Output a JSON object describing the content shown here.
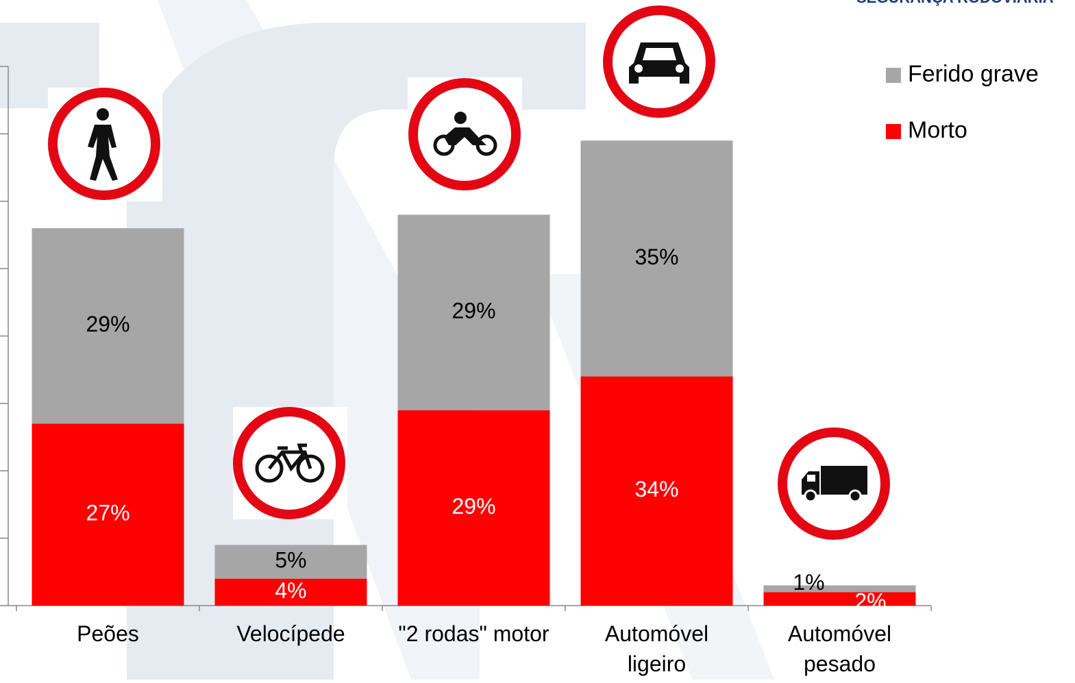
{
  "header": "SEGURANÇA RODOVIÁRIA",
  "chart_data": {
    "type": "stacked_bar",
    "categories": [
      "Peões",
      "Velocípede",
      "\"2 rodas\" motor",
      "Automóvel\nligeiro",
      "Automóvel\npesado"
    ],
    "series": [
      {
        "name": "Morto",
        "color": "#ff0000",
        "values": [
          27,
          4,
          29,
          34,
          2
        ],
        "value_labels": [
          "27%",
          "4%",
          "29%",
          "34%",
          "2%"
        ]
      },
      {
        "name": "Ferido grave",
        "color": "#a6a6a6",
        "values": [
          29,
          5,
          29,
          35,
          1
        ],
        "value_labels": [
          "29%",
          "5%",
          "29%",
          "35%",
          "1%"
        ]
      }
    ],
    "ylim": [
      0,
      80
    ],
    "yticks": [
      0,
      10,
      20,
      30,
      40,
      50,
      60,
      70,
      80
    ],
    "legend": "top-right"
  }
}
